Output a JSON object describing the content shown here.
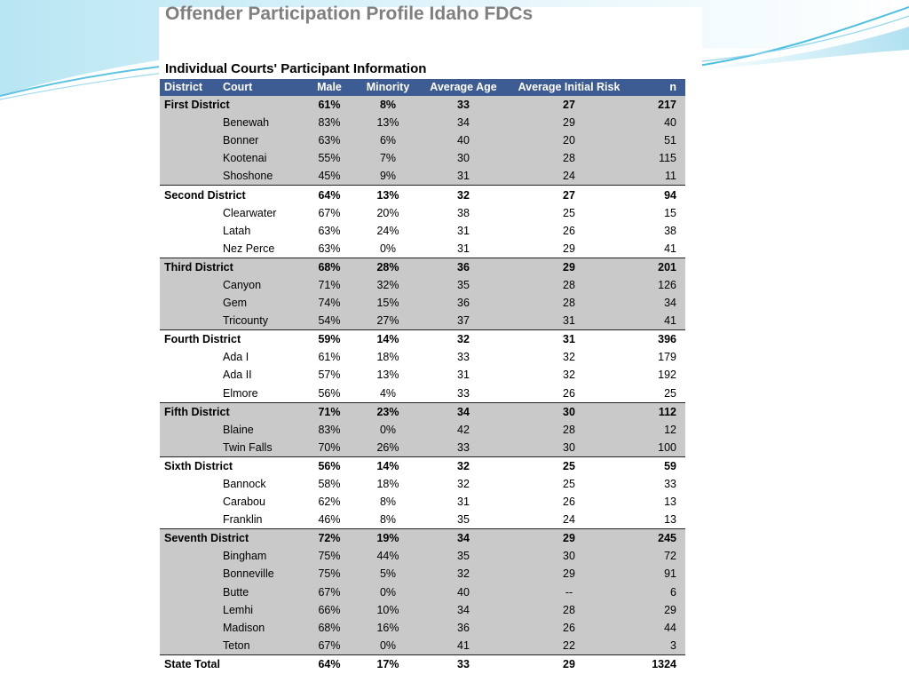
{
  "slide": {
    "title": "Offender Participation Profile Idaho FDCs",
    "subtitle": "Individual Courts' Participant Information"
  },
  "table": {
    "headers": [
      "District",
      "Court",
      "Male",
      "Minority",
      "Average Age",
      "Average Initial Risk",
      "n"
    ],
    "groups": [
      {
        "district": "First District",
        "male": "61%",
        "minority": "8%",
        "age": "33",
        "risk": "27",
        "n": "217",
        "shaded": true,
        "courts": [
          {
            "court": "Benewah",
            "male": "83%",
            "minority": "13%",
            "age": "34",
            "risk": "29",
            "n": "40"
          },
          {
            "court": "Bonner",
            "male": "63%",
            "minority": "6%",
            "age": "40",
            "risk": "20",
            "n": "51"
          },
          {
            "court": "Kootenai",
            "male": "55%",
            "minority": "7%",
            "age": "30",
            "risk": "28",
            "n": "115"
          },
          {
            "court": "Shoshone",
            "male": "45%",
            "minority": "9%",
            "age": "31",
            "risk": "24",
            "n": "11"
          }
        ]
      },
      {
        "district": "Second District",
        "male": "64%",
        "minority": "13%",
        "age": "32",
        "risk": "27",
        "n": "94",
        "shaded": false,
        "courts": [
          {
            "court": "Clearwater",
            "male": "67%",
            "minority": "20%",
            "age": "38",
            "risk": "25",
            "n": "15"
          },
          {
            "court": "Latah",
            "male": "63%",
            "minority": "24%",
            "age": "31",
            "risk": "26",
            "n": "38"
          },
          {
            "court": "Nez Perce",
            "male": "63%",
            "minority": "0%",
            "age": "31",
            "risk": "29",
            "n": "41"
          }
        ]
      },
      {
        "district": "Third District",
        "male": "68%",
        "minority": "28%",
        "age": "36",
        "risk": "29",
        "n": "201",
        "shaded": true,
        "courts": [
          {
            "court": "Canyon",
            "male": "71%",
            "minority": "32%",
            "age": "35",
            "risk": "28",
            "n": "126"
          },
          {
            "court": "Gem",
            "male": "74%",
            "minority": "15%",
            "age": "36",
            "risk": "28",
            "n": "34"
          },
          {
            "court": "Tricounty",
            "male": "54%",
            "minority": "27%",
            "age": "37",
            "risk": "31",
            "n": "41"
          }
        ]
      },
      {
        "district": "Fourth District",
        "male": "59%",
        "minority": "14%",
        "age": "32",
        "risk": "31",
        "n": "396",
        "shaded": false,
        "courts": [
          {
            "court": "Ada I",
            "male": "61%",
            "minority": "18%",
            "age": "33",
            "risk": "32",
            "n": "179"
          },
          {
            "court": "Ada II",
            "male": "57%",
            "minority": "13%",
            "age": "31",
            "risk": "32",
            "n": "192"
          },
          {
            "court": "Elmore",
            "male": "56%",
            "minority": "4%",
            "age": "33",
            "risk": "26",
            "n": "25"
          }
        ]
      },
      {
        "district": "Fifth District",
        "male": "71%",
        "minority": "23%",
        "age": "34",
        "risk": "30",
        "n": "112",
        "shaded": true,
        "courts": [
          {
            "court": "Blaine",
            "male": "83%",
            "minority": "0%",
            "age": "42",
            "risk": "28",
            "n": "12"
          },
          {
            "court": "Twin Falls",
            "male": "70%",
            "minority": "26%",
            "age": "33",
            "risk": "30",
            "n": "100"
          }
        ]
      },
      {
        "district": "Sixth District",
        "male": "56%",
        "minority": "14%",
        "age": "32",
        "risk": "25",
        "n": "59",
        "shaded": false,
        "courts": [
          {
            "court": "Bannock",
            "male": "58%",
            "minority": "18%",
            "age": "32",
            "risk": "25",
            "n": "33"
          },
          {
            "court": "Carabou",
            "male": "62%",
            "minority": "8%",
            "age": "31",
            "risk": "26",
            "n": "13"
          },
          {
            "court": "Franklin",
            "male": "46%",
            "minority": "8%",
            "age": "35",
            "risk": "24",
            "n": "13"
          }
        ]
      },
      {
        "district": "Seventh District",
        "male": "72%",
        "minority": "19%",
        "age": "34",
        "risk": "29",
        "n": "245",
        "shaded": true,
        "courts": [
          {
            "court": "Bingham",
            "male": "75%",
            "minority": "44%",
            "age": "35",
            "risk": "30",
            "n": "72"
          },
          {
            "court": "Bonneville",
            "male": "75%",
            "minority": "5%",
            "age": "32",
            "risk": "29",
            "n": "91"
          },
          {
            "court": "Butte",
            "male": "67%",
            "minority": "0%",
            "age": "40",
            "risk": "--",
            "n": "6"
          },
          {
            "court": "Lemhi",
            "male": "66%",
            "minority": "10%",
            "age": "34",
            "risk": "28",
            "n": "29"
          },
          {
            "court": "Madison",
            "male": "68%",
            "minority": "16%",
            "age": "36",
            "risk": "26",
            "n": "44"
          },
          {
            "court": "Teton",
            "male": "67%",
            "minority": "0%",
            "age": "41",
            "risk": "22",
            "n": "3"
          }
        ]
      }
    ],
    "total": {
      "label": "State Total",
      "male": "64%",
      "minority": "17%",
      "age": "33",
      "risk": "29",
      "n": "1324"
    }
  },
  "colors": {
    "header_bg": "#3e5c94",
    "shade": "#c9c9c9",
    "title": "#7f7f7f",
    "accent": "#41b6d8"
  }
}
